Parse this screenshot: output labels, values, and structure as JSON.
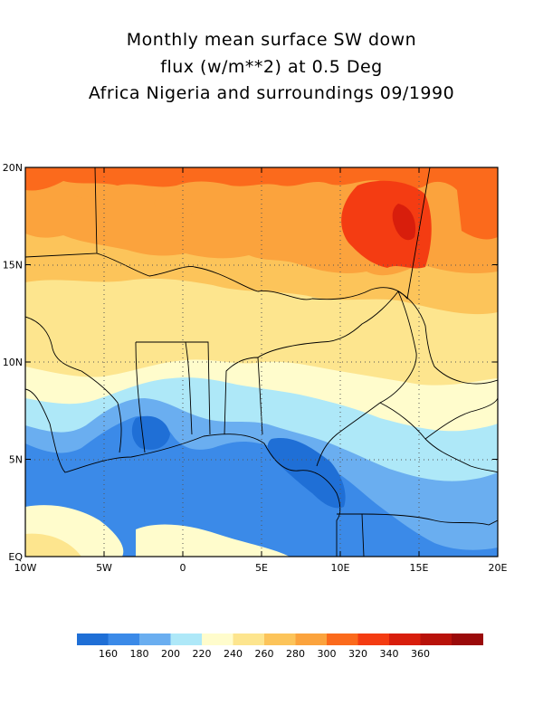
{
  "title": {
    "line1": "Monthly mean surface SW down",
    "line2": "flux (w/m**2) at 0.5 Deg",
    "line3": "Africa Nigeria and surroundings 09/1990"
  },
  "axes": {
    "lon_labels": [
      "10W",
      "5W",
      "0",
      "5E",
      "10E",
      "15E",
      "20E"
    ],
    "lon_values": [
      -10,
      -5,
      0,
      5,
      10,
      15,
      20
    ],
    "lat_labels": [
      "EQ",
      "5N",
      "10N",
      "15N",
      "20N"
    ],
    "lat_values": [
      0,
      5,
      10,
      15,
      20
    ],
    "xlim": [
      -10,
      20
    ],
    "ylim": [
      0,
      20
    ]
  },
  "colorbar": {
    "colors": [
      "#1f6fd6",
      "#3b8ae8",
      "#6aaef0",
      "#aee8f8",
      "#fffccc",
      "#fde58e",
      "#fcc45a",
      "#fba33d",
      "#fb6a1c",
      "#f43c12",
      "#d81e0c",
      "#b8120a",
      "#9a0a0a"
    ],
    "labels": [
      "160",
      "180",
      "200",
      "220",
      "240",
      "260",
      "280",
      "300",
      "320",
      "340",
      "360"
    ]
  }
}
